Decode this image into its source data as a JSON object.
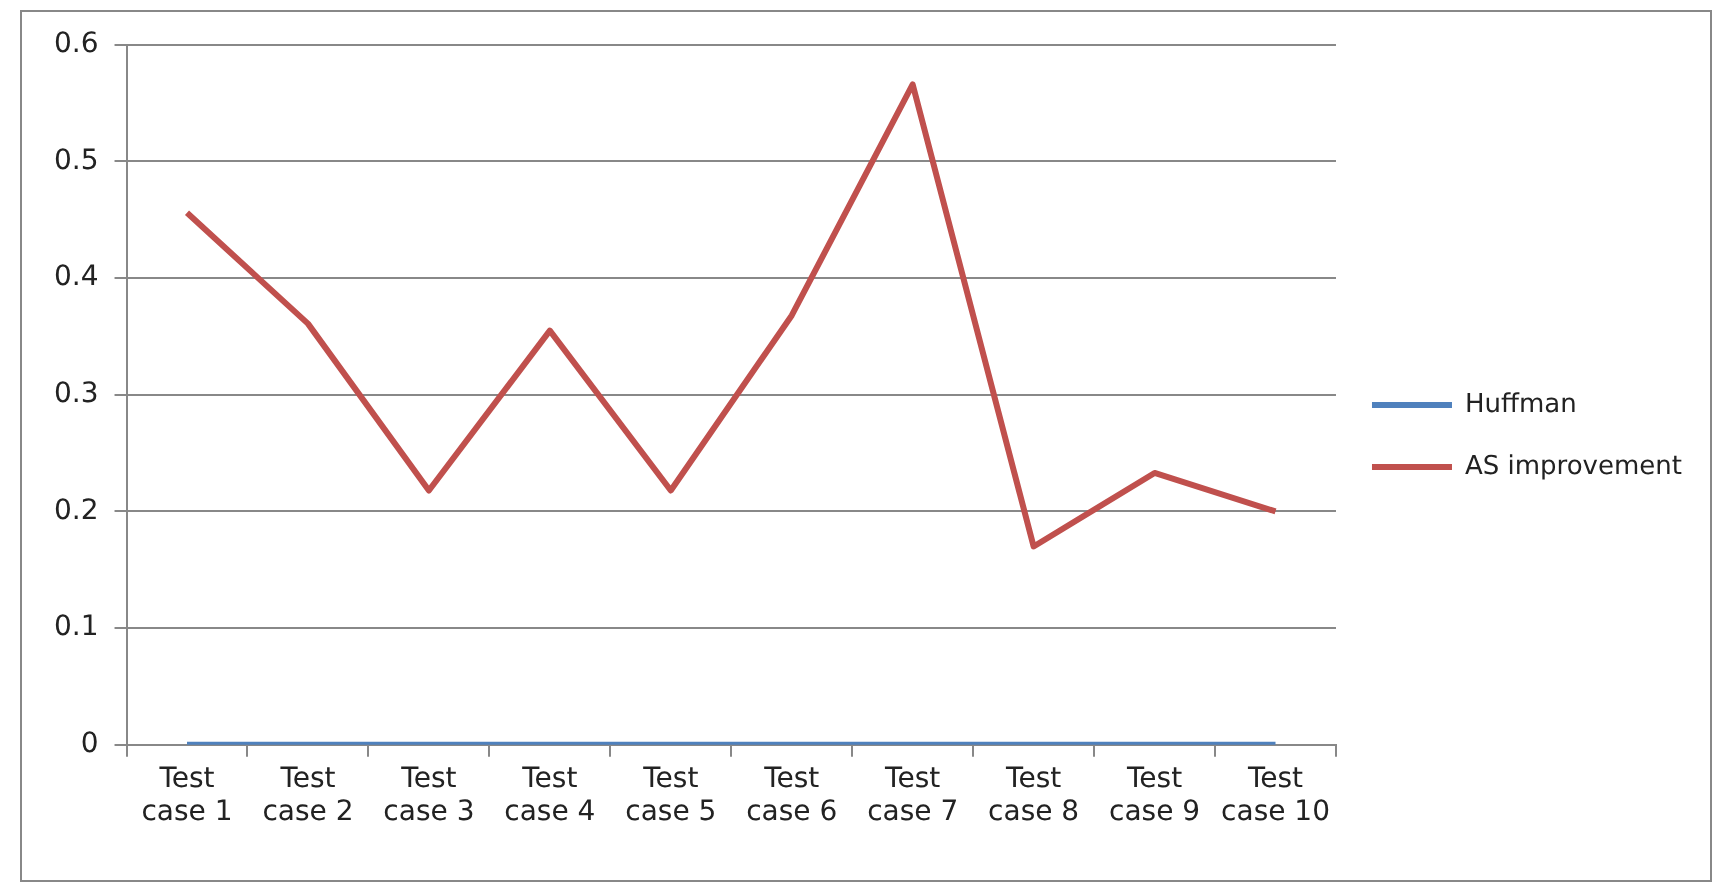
{
  "chart_data": {
    "type": "line",
    "categories": [
      "Test case 1",
      "Test case 2",
      "Test case 3",
      "Test case 4",
      "Test case 5",
      "Test case 6",
      "Test case 7",
      "Test case 8",
      "Test case 9",
      "Test case 10"
    ],
    "series": [
      {
        "name": "Huffman",
        "color": "#4f81bd",
        "values": [
          0,
          0,
          0,
          0,
          0,
          0,
          0,
          0,
          0,
          0
        ]
      },
      {
        "name": "AS improvement",
        "color": "#c0504d",
        "values": [
          0.456,
          0.361,
          0.218,
          0.355,
          0.218,
          0.368,
          0.566,
          0.17,
          0.233,
          0.2
        ]
      }
    ],
    "ylim": [
      0,
      0.6
    ],
    "yticks": [
      0,
      0.1,
      0.2,
      0.3,
      0.4,
      0.5,
      0.6
    ],
    "grid": "y",
    "legend": "right",
    "marker": "none",
    "line_style": "solid"
  }
}
